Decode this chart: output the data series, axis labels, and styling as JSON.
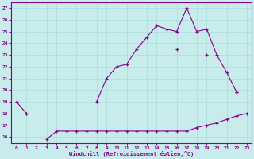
{
  "xlabel": "Windchill (Refroidissement éolien,°C)",
  "background_color": "#c8ecec",
  "grid_color": "#aadddd",
  "line_color": "#880088",
  "x_all": [
    0,
    1,
    2,
    3,
    4,
    5,
    6,
    7,
    8,
    9,
    10,
    11,
    12,
    13,
    14,
    15,
    16,
    17,
    18,
    19,
    20,
    21,
    22,
    23
  ],
  "line1_y": [
    19.0,
    18.0,
    null,
    null,
    null,
    null,
    null,
    null,
    19.0,
    21.0,
    22.0,
    22.2,
    23.5,
    24.5,
    25.5,
    25.2,
    25.0,
    27.0,
    25.0,
    25.2,
    23.0,
    21.5,
    19.8,
    null
  ],
  "line2_y": [
    null,
    18.0,
    null,
    null,
    null,
    null,
    null,
    null,
    null,
    null,
    null,
    null,
    null,
    null,
    null,
    null,
    23.5,
    null,
    null,
    23.0,
    null,
    null,
    19.8,
    null
  ],
  "line3_y": [
    null,
    null,
    null,
    15.8,
    16.5,
    16.5,
    16.5,
    16.5,
    16.5,
    16.5,
    16.5,
    16.5,
    16.5,
    16.5,
    16.5,
    16.5,
    16.5,
    16.5,
    16.8,
    17.0,
    17.2,
    17.5,
    17.8,
    18.0
  ],
  "ylim": [
    15.5,
    27.5
  ],
  "xlim": [
    -0.5,
    23.5
  ],
  "yticks": [
    16,
    17,
    18,
    19,
    20,
    21,
    22,
    23,
    24,
    25,
    26,
    27
  ],
  "xticks": [
    0,
    1,
    2,
    3,
    4,
    5,
    6,
    7,
    8,
    9,
    10,
    11,
    12,
    13,
    14,
    15,
    16,
    17,
    18,
    19,
    20,
    21,
    22,
    23
  ]
}
